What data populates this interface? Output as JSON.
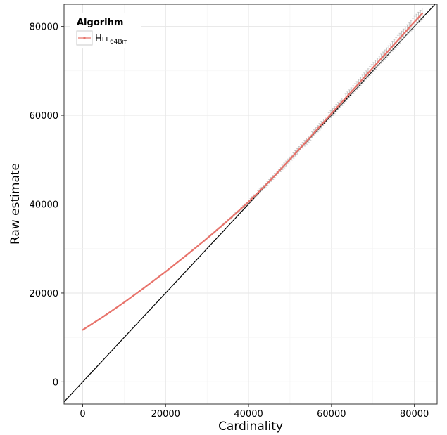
{
  "chart_data": {
    "type": "line",
    "title": "",
    "xlabel": "Cardinality",
    "ylabel": "Raw estimate",
    "xlim": [
      -4500,
      85500
    ],
    "ylim": [
      -5000,
      85000
    ],
    "x_ticks": [
      0,
      20000,
      40000,
      60000,
      80000
    ],
    "y_ticks": [
      0,
      20000,
      40000,
      60000,
      80000
    ],
    "grid": true,
    "legend": {
      "title": "Algorihm",
      "position": "top-left",
      "entries": [
        {
          "main": "H",
          "small_caps": "LL",
          "subscript_digits": "64B",
          "subscript_small_caps": "IT",
          "color": "#e8736b"
        }
      ]
    },
    "reference_line": {
      "label": "",
      "from": [
        -5000,
        -5000
      ],
      "to": [
        86000,
        86000
      ],
      "color": "#000000"
    },
    "series": [
      {
        "name": "HLL64BIT",
        "color": "#e8736b",
        "error_band_color": "#b5b5b5",
        "x": [
          0,
          5000,
          10000,
          15000,
          20000,
          25000,
          30000,
          35000,
          40000,
          45000,
          50000,
          55000,
          60000,
          65000,
          70000,
          75000,
          80000,
          82000
        ],
        "y": [
          11700,
          14700,
          17900,
          21300,
          24800,
          28500,
          32300,
          36300,
          40500,
          45100,
          50100,
          55200,
          60400,
          65500,
          70700,
          75800,
          81000,
          83000
        ],
        "error": [
          0,
          0,
          0,
          0,
          0,
          0,
          50,
          150,
          300,
          450,
          600,
          700,
          800,
          900,
          1000,
          1100,
          1200,
          1250
        ]
      }
    ]
  }
}
